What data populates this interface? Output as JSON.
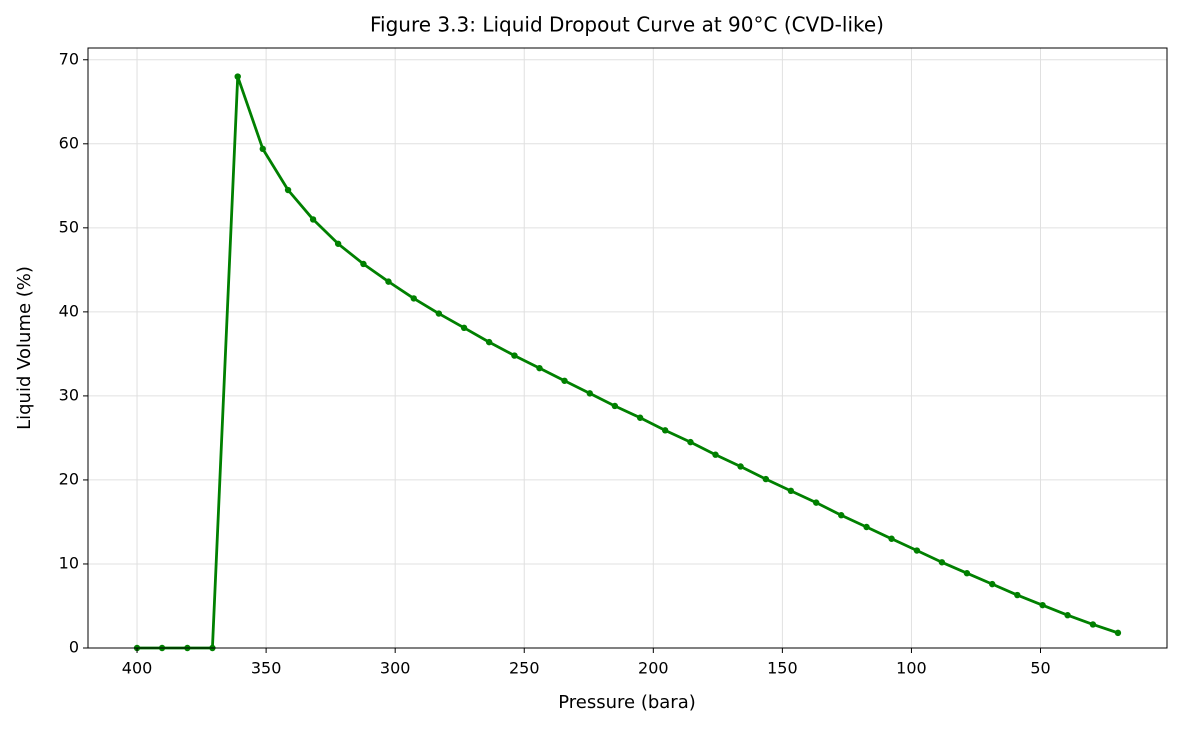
{
  "chart_data": {
    "type": "line",
    "title": "Figure 3.3: Liquid Dropout Curve at 90°C (CVD-like)",
    "x_label": "Pressure (bara)",
    "y_label": "Liquid Volume (%)",
    "x": [
      400,
      390.3,
      380.5,
      370.8,
      361.0,
      351.3,
      341.5,
      331.8,
      322.1,
      312.3,
      302.6,
      292.8,
      283.1,
      273.3,
      263.6,
      253.8,
      244.1,
      234.4,
      224.6,
      214.9,
      205.1,
      195.4,
      185.6,
      175.9,
      166.2,
      156.4,
      146.7,
      136.9,
      127.2,
      117.4,
      107.7,
      97.9,
      88.2,
      78.5,
      68.7,
      59.0,
      49.2,
      39.5,
      29.7,
      20.0
    ],
    "series": [
      {
        "color": "#008000",
        "values": [
          0,
          0,
          0,
          0,
          68.0,
          59.4,
          54.5,
          51.0,
          48.1,
          45.7,
          43.6,
          41.6,
          39.8,
          38.1,
          36.4,
          34.8,
          33.3,
          31.8,
          30.3,
          28.8,
          27.4,
          25.9,
          24.5,
          23.0,
          21.6,
          20.1,
          18.7,
          17.3,
          15.8,
          14.4,
          13.0,
          11.6,
          10.2,
          8.9,
          7.6,
          6.3,
          5.1,
          3.9,
          2.8,
          1.8
        ]
      }
    ],
    "xlim": [
      419,
      1
    ],
    "xticks": [
      400,
      350,
      300,
      250,
      200,
      150,
      100,
      50
    ],
    "ylim": [
      0,
      71.4
    ],
    "yticks": [
      0,
      10,
      20,
      30,
      40,
      50,
      60,
      70
    ],
    "grid": true
  }
}
